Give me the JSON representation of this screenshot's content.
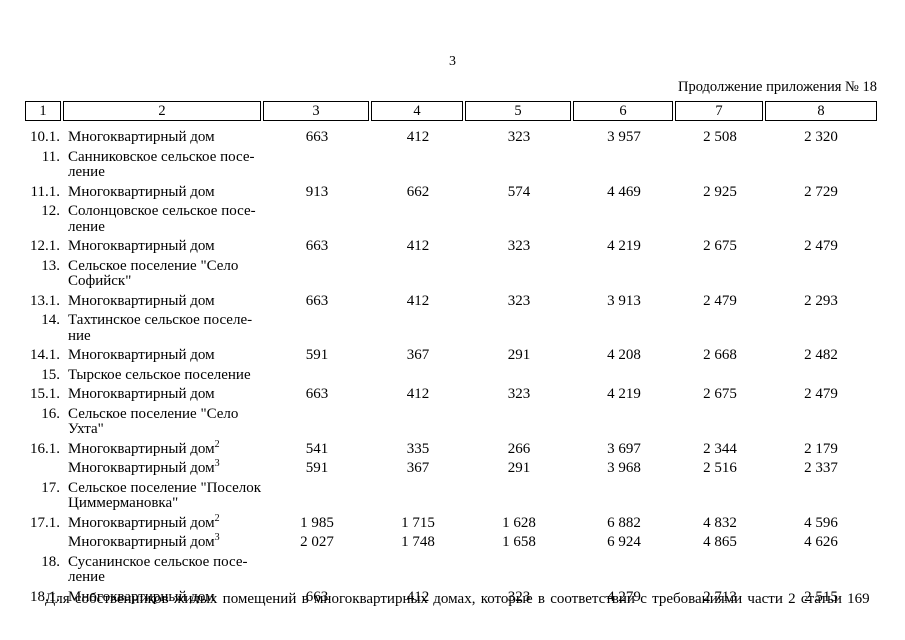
{
  "page": {
    "number": "3",
    "continuation": "Продолжение приложения № 18",
    "footer": "Для собственников жилых помещений в многоквартирных домах, которые в соответствии с требованиями части 2 статьи 169"
  },
  "table": {
    "headers": [
      "1",
      "2",
      "3",
      "4",
      "5",
      "6",
      "7",
      "8"
    ],
    "rows": [
      {
        "num": "10.1.",
        "name": "Многоквартирный дом",
        "sup": "",
        "values": [
          "663",
          "412",
          "323",
          "3 957",
          "2 508",
          "2 320"
        ]
      },
      {
        "num": "11.",
        "name_lines": [
          "Санниковское сельское посе-",
          "ление"
        ],
        "values": []
      },
      {
        "num": "11.1.",
        "name": "Многоквартирный дом",
        "sup": "",
        "values": [
          "913",
          "662",
          "574",
          "4 469",
          "2 925",
          "2 729"
        ]
      },
      {
        "num": "12.",
        "name_lines": [
          "Солонцовское сельское посе-",
          "ление"
        ],
        "values": []
      },
      {
        "num": "12.1.",
        "name": "Многоквартирный дом",
        "sup": "",
        "values": [
          "663",
          "412",
          "323",
          "4 219",
          "2 675",
          "2 479"
        ]
      },
      {
        "num": "13.",
        "name_lines": [
          "Сельское поселение \"Село",
          "Софийск\""
        ],
        "values": []
      },
      {
        "num": "13.1.",
        "name": "Многоквартирный дом",
        "sup": "",
        "values": [
          "663",
          "412",
          "323",
          "3 913",
          "2 479",
          "2 293"
        ]
      },
      {
        "num": "14.",
        "name_lines": [
          "Тахтинское сельское поселе-",
          "ние"
        ],
        "values": []
      },
      {
        "num": "14.1.",
        "name": "Многоквартирный дом",
        "sup": "",
        "values": [
          "591",
          "367",
          "291",
          "4 208",
          "2 668",
          "2 482"
        ]
      },
      {
        "num": "15.",
        "name_lines": [
          "Тырское сельское поселение"
        ],
        "values": []
      },
      {
        "num": "15.1.",
        "name": "Многоквартирный дом",
        "sup": "",
        "values": [
          "663",
          "412",
          "323",
          "4 219",
          "2 675",
          "2 479"
        ]
      },
      {
        "num": "16.",
        "name_lines": [
          "Сельское поселение \"Село",
          "Ухта\""
        ],
        "values": []
      },
      {
        "num": "16.1.",
        "name": "Многоквартирный дом",
        "sup": "2",
        "values": [
          "541",
          "335",
          "266",
          "3 697",
          "2 344",
          "2 179"
        ]
      },
      {
        "num": "",
        "name": "Многоквартирный дом",
        "sup": "3",
        "values": [
          "591",
          "367",
          "291",
          "3 968",
          "2 516",
          "2 337"
        ]
      },
      {
        "num": "17.",
        "name_lines": [
          "Сельское поселение \"Поселок",
          "Циммермановка\""
        ],
        "values": []
      },
      {
        "num": "17.1.",
        "name": "Многоквартирный дом",
        "sup": "2",
        "values": [
          "1 985",
          "1 715",
          "1 628",
          "6 882",
          "4 832",
          "4 596"
        ]
      },
      {
        "num": "",
        "name": "Многоквартирный дом",
        "sup": "3",
        "values": [
          "2 027",
          "1 748",
          "1 658",
          "6 924",
          "4 865",
          "4 626"
        ]
      },
      {
        "num": "18.",
        "name_lines": [
          "Сусанинское сельское посе-",
          "ление"
        ],
        "values": []
      },
      {
        "num": "18.1.",
        "name": "Многоквартирный дом",
        "sup": "",
        "values": [
          "663",
          "412",
          "323",
          "4 279",
          "2 713",
          "2 515"
        ]
      }
    ]
  }
}
